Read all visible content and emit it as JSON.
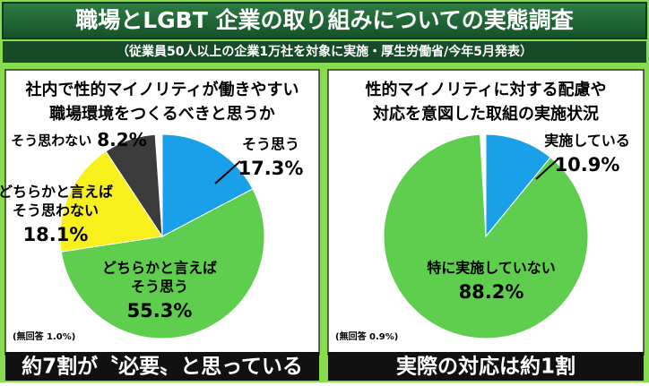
{
  "header": {
    "title": "職場とLGBT 企業の取り組みについての実態調査",
    "subtitle": "（従業員50人以上の企業1万社を対象に実施・厚生労働省/今年5月発表）"
  },
  "chart_data": [
    {
      "type": "pie",
      "title": [
        "社内で性的マイノリティが働きやすい",
        "職場環境をつくるべきと思うか"
      ],
      "categories": [
        [
          "そう思う"
        ],
        [
          "どちらかと言えば",
          "そう思う"
        ],
        [
          "どちらかと言えば",
          "そう思わない"
        ],
        [
          "そう思わない"
        ]
      ],
      "values": [
        17.3,
        55.3,
        18.1,
        8.2
      ],
      "value_labels": [
        "17.3%",
        "55.3%",
        "18.1%",
        "8.2%"
      ],
      "colors": [
        "#1aa0e8",
        "#5fcd4e",
        "#f7f01c",
        "#3b3b3b"
      ],
      "note": "(無回答 1.0%)",
      "caption": "約7割が〝必要〟と思っている"
    },
    {
      "type": "pie",
      "title": [
        "性的マイノリティに対する配慮や",
        "対応を意図した取組の実施状況"
      ],
      "categories": [
        [
          "実施している"
        ],
        [
          "特に実施していない"
        ]
      ],
      "values": [
        10.9,
        88.2
      ],
      "value_labels": [
        "10.9%",
        "88.2%"
      ],
      "colors": [
        "#1aa0e8",
        "#5fcd4e"
      ],
      "note": "(無回答 0.9%)",
      "caption": "実際の対応は約1割"
    }
  ]
}
